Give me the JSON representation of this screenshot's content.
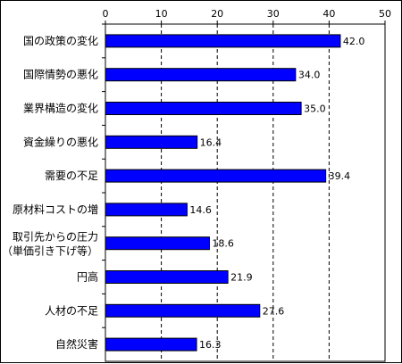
{
  "chart_data": {
    "type": "bar",
    "orientation": "horizontal",
    "title": "",
    "xlabel": "",
    "ylabel": "",
    "xlim": [
      0,
      50
    ],
    "x_ticks": [
      0,
      10,
      20,
      30,
      40,
      50
    ],
    "grid": "vertical dashed at 10, 20, 30, 40",
    "bar_color": "#0000ff",
    "bar_outline": "#000000",
    "categories": [
      [
        "国の政策の変化"
      ],
      [
        "国際情勢の悪化"
      ],
      [
        "業界構造の変化"
      ],
      [
        "資金繰りの悪化"
      ],
      [
        "需要の不足"
      ],
      [
        "原材料コストの増"
      ],
      [
        "取引先からの圧力",
        "（単価引き下げ等）"
      ],
      [
        "円高"
      ],
      [
        "人材の不足"
      ],
      [
        "自然災害"
      ]
    ],
    "values": [
      42.0,
      34.0,
      35.0,
      16.4,
      39.4,
      14.6,
      18.6,
      21.9,
      27.6,
      16.3
    ],
    "value_labels": [
      "42.0",
      "34.0",
      "35.0",
      "16.4",
      "39.4",
      "14.6",
      "18.6",
      "21.9",
      "27.6",
      "16.3"
    ]
  }
}
